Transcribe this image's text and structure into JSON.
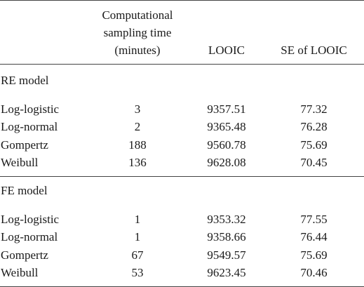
{
  "header": {
    "time_line1": "Computational",
    "time_line2": "sampling time",
    "time_line3": "(minutes)",
    "looic": "LOOIC",
    "se_looic": "SE of LOOIC"
  },
  "sections": [
    {
      "title": "RE model",
      "rows": [
        {
          "model": "Log-logistic",
          "time": "3",
          "looic": "9357.51",
          "se": "77.32"
        },
        {
          "model": "Log-normal",
          "time": "2",
          "looic": "9365.48",
          "se": "76.28"
        },
        {
          "model": "Gompertz",
          "time": "188",
          "looic": "9560.78",
          "se": "75.69"
        },
        {
          "model": "Weibull",
          "time": "136",
          "looic": "9628.08",
          "se": "70.45"
        }
      ]
    },
    {
      "title": "FE model",
      "rows": [
        {
          "model": "Log-logistic",
          "time": "1",
          "looic": "9353.32",
          "se": "77.55"
        },
        {
          "model": "Log-normal",
          "time": "1",
          "looic": "9358.66",
          "se": "76.44"
        },
        {
          "model": "Gompertz",
          "time": "67",
          "looic": "9549.57",
          "se": "75.69"
        },
        {
          "model": "Weibull",
          "time": "53",
          "looic": "9623.45",
          "se": "70.46"
        }
      ]
    }
  ]
}
